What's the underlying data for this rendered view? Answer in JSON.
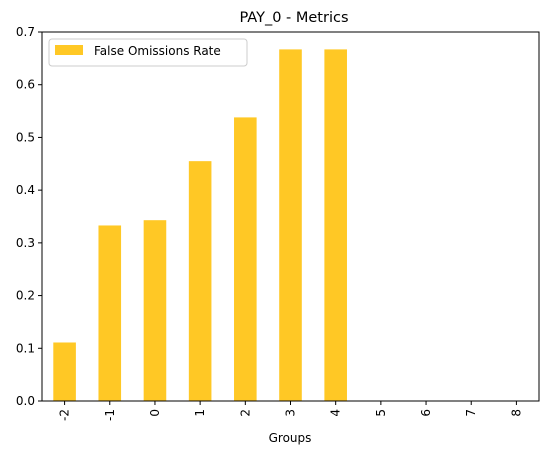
{
  "chart_data": {
    "type": "bar",
    "title": "PAY_0 - Metrics",
    "xlabel": "Groups",
    "ylabel": "",
    "categories": [
      "-2",
      "-1",
      "0",
      "1",
      "2",
      "3",
      "4",
      "5",
      "6",
      "7",
      "8"
    ],
    "series": [
      {
        "name": "False Omissions Rate",
        "values": [
          0.111,
          0.333,
          0.343,
          0.455,
          0.538,
          0.667,
          0.667,
          0,
          0,
          0,
          0
        ]
      }
    ],
    "ylim": [
      0,
      0.7
    ],
    "yticks": [
      "0.0",
      "0.1",
      "0.2",
      "0.3",
      "0.4",
      "0.5",
      "0.6",
      "0.7"
    ],
    "grid": false,
    "legend_position": "top-left",
    "bar_color": "#ffc825"
  }
}
